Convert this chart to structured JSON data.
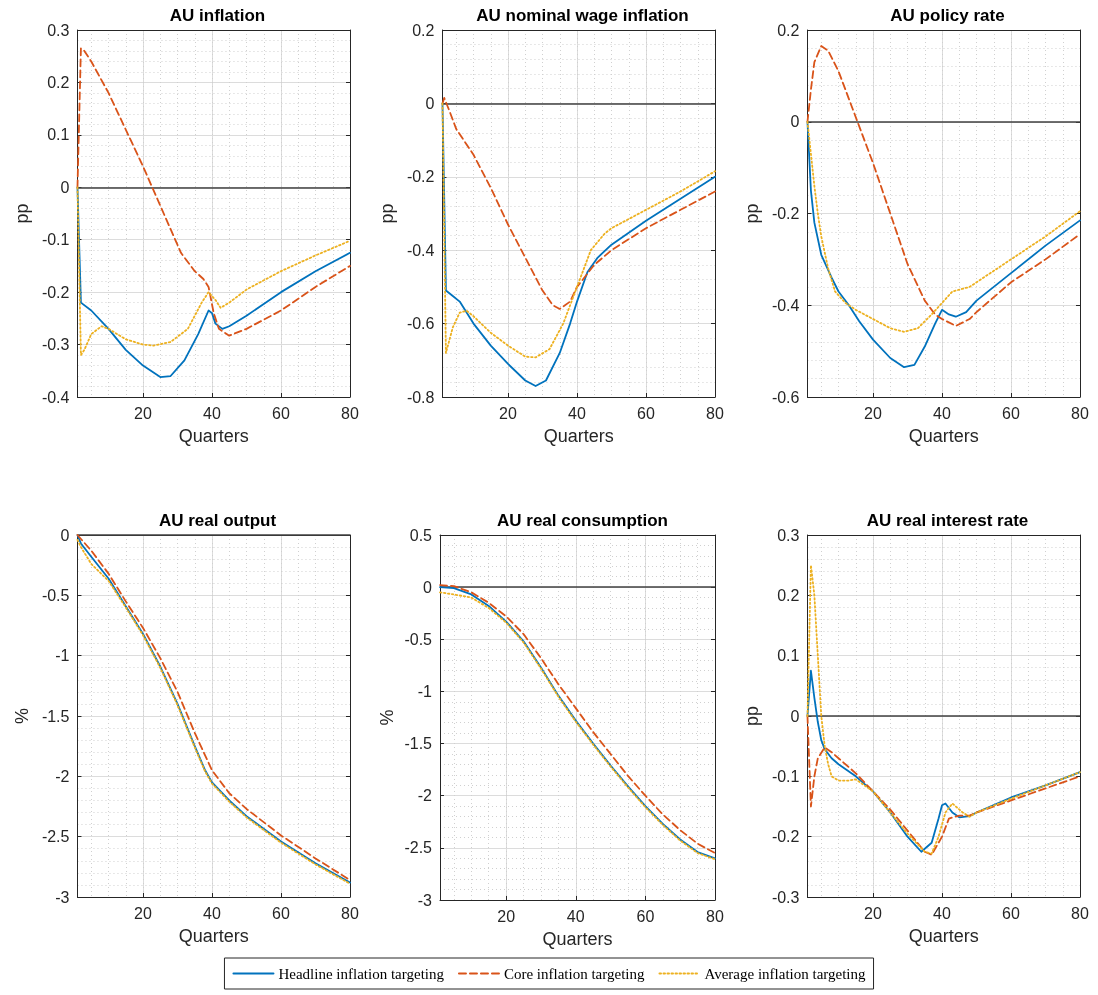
{
  "chart_data": [
    {
      "type": "line",
      "title": "AU inflation",
      "xlabel": "Quarters",
      "ylabel": "pp",
      "xlim": [
        1,
        80
      ],
      "xticks": [
        20,
        40,
        60,
        80
      ],
      "ylim": [
        -0.4,
        0.3
      ],
      "yticks": [
        -0.4,
        -0.3,
        -0.2,
        -0.1,
        0,
        0.1,
        0.2,
        0.3
      ],
      "grid": true,
      "ref_lines": [
        {
          "axis": "y",
          "value": 0,
          "color": "#404040"
        }
      ],
      "series": [
        {
          "color": "#0072bd",
          "line_style": "solid",
          "x": [
            1,
            2,
            5,
            10,
            15,
            20,
            25,
            28,
            32,
            36,
            39,
            40,
            41,
            43,
            45,
            50,
            60,
            70,
            80
          ],
          "values": [
            0,
            -0.22,
            -0.235,
            -0.27,
            -0.31,
            -0.34,
            -0.362,
            -0.36,
            -0.33,
            -0.28,
            -0.235,
            -0.24,
            -0.26,
            -0.27,
            -0.265,
            -0.245,
            -0.2,
            -0.16,
            -0.125
          ]
        },
        {
          "color": "#d95319",
          "line_style": "dashed",
          "x": [
            1,
            2,
            3,
            5,
            10,
            15,
            20,
            25,
            27,
            31,
            35,
            37.5,
            39,
            40.5,
            42,
            45,
            50,
            60,
            70,
            80
          ],
          "values": [
            0,
            0.265,
            0.26,
            0.24,
            0.18,
            0.11,
            0.04,
            -0.035,
            -0.065,
            -0.125,
            -0.16,
            -0.175,
            -0.19,
            -0.24,
            -0.27,
            -0.283,
            -0.27,
            -0.235,
            -0.19,
            -0.15
          ]
        },
        {
          "color": "#edb120",
          "line_style": "dotted",
          "x": [
            1,
            2,
            3,
            5,
            8,
            10,
            15,
            20,
            23,
            28,
            33,
            37,
            39,
            41,
            42.5,
            45,
            50,
            60,
            70,
            80
          ],
          "values": [
            0,
            -0.32,
            -0.31,
            -0.28,
            -0.265,
            -0.27,
            -0.29,
            -0.3,
            -0.302,
            -0.295,
            -0.27,
            -0.22,
            -0.2,
            -0.215,
            -0.23,
            -0.22,
            -0.195,
            -0.16,
            -0.13,
            -0.102
          ]
        }
      ]
    },
    {
      "type": "line",
      "title": "AU nominal wage inflation",
      "xlabel": "Quarters",
      "ylabel": "pp",
      "xlim": [
        1,
        80
      ],
      "xticks": [
        20,
        40,
        60,
        80
      ],
      "ylim": [
        -0.8,
        0.2
      ],
      "yticks": [
        -0.8,
        -0.6,
        -0.4,
        -0.2,
        0,
        0.2
      ],
      "grid": true,
      "ref_lines": [
        {
          "axis": "y",
          "value": 0,
          "color": "#404040"
        }
      ],
      "series": [
        {
          "color": "#0072bd",
          "line_style": "solid",
          "x": [
            1,
            2,
            4,
            6,
            10,
            15,
            20,
            25,
            28,
            31,
            35,
            38,
            40,
            43,
            46,
            50,
            60,
            70,
            80
          ],
          "values": [
            0,
            -0.51,
            -0.525,
            -0.54,
            -0.6,
            -0.66,
            -0.71,
            -0.755,
            -0.77,
            -0.755,
            -0.68,
            -0.6,
            -0.54,
            -0.46,
            -0.42,
            -0.385,
            -0.32,
            -0.26,
            -0.2
          ]
        },
        {
          "color": "#d95319",
          "line_style": "dashed",
          "x": [
            1,
            1.5,
            3,
            5,
            10,
            15,
            20,
            25,
            30,
            33,
            35,
            38,
            40,
            45,
            50,
            60,
            70,
            80
          ],
          "values": [
            0,
            0.015,
            -0.02,
            -0.07,
            -0.14,
            -0.23,
            -0.33,
            -0.42,
            -0.51,
            -0.55,
            -0.56,
            -0.54,
            -0.5,
            -0.44,
            -0.4,
            -0.34,
            -0.29,
            -0.24
          ]
        },
        {
          "color": "#edb120",
          "line_style": "dotted",
          "x": [
            1,
            2,
            4,
            6,
            8,
            10,
            15,
            20,
            25,
            28,
            32,
            36,
            40,
            44,
            48,
            50,
            60,
            70,
            80
          ],
          "values": [
            0,
            -0.68,
            -0.61,
            -0.57,
            -0.565,
            -0.58,
            -0.625,
            -0.66,
            -0.69,
            -0.692,
            -0.67,
            -0.6,
            -0.5,
            -0.4,
            -0.355,
            -0.34,
            -0.29,
            -0.24,
            -0.185
          ]
        }
      ]
    },
    {
      "type": "line",
      "title": "AU policy rate",
      "xlabel": "Quarters",
      "ylabel": "pp",
      "xlim": [
        1,
        80
      ],
      "xticks": [
        20,
        40,
        60,
        80
      ],
      "ylim": [
        -0.6,
        0.2
      ],
      "yticks": [
        -0.6,
        -0.4,
        -0.2,
        0,
        0.2
      ],
      "grid": true,
      "ref_lines": [
        {
          "axis": "y",
          "value": 0,
          "color": "#404040"
        }
      ],
      "series": [
        {
          "color": "#0072bd",
          "line_style": "solid",
          "x": [
            1,
            2,
            3,
            5,
            8,
            10,
            13,
            16,
            20,
            25,
            29,
            32,
            35,
            38,
            40,
            42,
            44,
            47,
            50,
            60,
            70,
            80
          ],
          "values": [
            0,
            -0.15,
            -0.22,
            -0.29,
            -0.34,
            -0.37,
            -0.4,
            -0.435,
            -0.475,
            -0.515,
            -0.535,
            -0.53,
            -0.49,
            -0.44,
            -0.41,
            -0.42,
            -0.425,
            -0.415,
            -0.39,
            -0.33,
            -0.27,
            -0.215
          ]
        },
        {
          "color": "#d95319",
          "line_style": "dashed",
          "x": [
            1,
            2,
            3,
            5,
            7,
            10,
            13,
            15.5,
            20,
            25,
            30,
            35,
            38,
            40,
            44,
            48,
            50,
            60,
            70,
            80
          ],
          "values": [
            0,
            0.07,
            0.13,
            0.165,
            0.155,
            0.11,
            0.05,
            0,
            -0.09,
            -0.2,
            -0.31,
            -0.39,
            -0.42,
            -0.43,
            -0.445,
            -0.43,
            -0.415,
            -0.35,
            -0.3,
            -0.245
          ]
        },
        {
          "color": "#edb120",
          "line_style": "dotted",
          "x": [
            1,
            2,
            3,
            4,
            5,
            7,
            9,
            12,
            15,
            20,
            25,
            29,
            33,
            37,
            40,
            43,
            48,
            50,
            60,
            70,
            80
          ],
          "values": [
            0,
            -0.07,
            -0.14,
            -0.2,
            -0.25,
            -0.32,
            -0.37,
            -0.395,
            -0.41,
            -0.43,
            -0.45,
            -0.458,
            -0.45,
            -0.42,
            -0.395,
            -0.37,
            -0.36,
            -0.35,
            -0.3,
            -0.25,
            -0.195
          ]
        }
      ]
    },
    {
      "type": "line",
      "title": "AU real output",
      "xlabel": "Quarters",
      "ylabel": "%",
      "xlim": [
        1,
        80
      ],
      "xticks": [
        20,
        40,
        60,
        80
      ],
      "ylim": [
        -3,
        0
      ],
      "yticks": [
        -3,
        -2.5,
        -2,
        -1.5,
        -1,
        -0.5,
        0
      ],
      "grid": true,
      "ref_lines": [
        {
          "axis": "y",
          "value": 0,
          "color": "#404040"
        }
      ],
      "series": [
        {
          "color": "#0072bd",
          "line_style": "solid",
          "x": [
            1,
            2,
            5,
            10,
            15,
            20,
            25,
            30,
            35,
            38,
            40,
            45,
            50,
            60,
            70,
            80
          ],
          "values": [
            0,
            -0.07,
            -0.18,
            -0.36,
            -0.59,
            -0.82,
            -1.09,
            -1.4,
            -1.75,
            -1.95,
            -2.05,
            -2.2,
            -2.33,
            -2.54,
            -2.72,
            -2.88
          ]
        },
        {
          "color": "#d95319",
          "line_style": "dashed",
          "x": [
            1,
            5,
            10,
            15,
            20,
            25,
            30,
            35,
            40,
            45,
            50,
            60,
            70,
            80
          ],
          "values": [
            0,
            -0.13,
            -0.32,
            -0.55,
            -0.77,
            -1.02,
            -1.3,
            -1.64,
            -1.95,
            -2.14,
            -2.27,
            -2.49,
            -2.68,
            -2.86
          ]
        },
        {
          "color": "#edb120",
          "line_style": "dotted",
          "x": [
            1,
            2,
            5,
            10,
            15,
            20,
            25,
            30,
            35,
            38,
            40,
            45,
            50,
            60,
            70,
            80
          ],
          "values": [
            -0.04,
            -0.1,
            -0.24,
            -0.38,
            -0.6,
            -0.83,
            -1.1,
            -1.41,
            -1.76,
            -1.96,
            -2.06,
            -2.21,
            -2.34,
            -2.55,
            -2.73,
            -2.89
          ]
        }
      ]
    },
    {
      "type": "line",
      "title": "AU real consumption",
      "xlabel": "Quarters",
      "ylabel": "%",
      "xlim": [
        1,
        80
      ],
      "xticks": [
        20,
        40,
        60,
        80
      ],
      "ylim": [
        -3,
        0.5
      ],
      "yticks": [
        -3,
        -2.5,
        -2,
        -1.5,
        -1,
        -0.5,
        0,
        0.5
      ],
      "grid": true,
      "legend": "bottom",
      "ref_lines": [
        {
          "axis": "y",
          "value": 0,
          "color": "#404040"
        }
      ],
      "series": [
        {
          "name": "Headline inflation targeting",
          "color": "#0072bd",
          "line_style": "solid",
          "x": [
            1,
            5,
            10,
            15,
            20,
            25,
            30,
            35,
            40,
            45,
            50,
            55,
            60,
            65,
            70,
            75,
            80
          ],
          "values": [
            0,
            -0.01,
            -0.07,
            -0.18,
            -0.33,
            -0.52,
            -0.77,
            -1.04,
            -1.28,
            -1.5,
            -1.71,
            -1.91,
            -2.1,
            -2.27,
            -2.42,
            -2.54,
            -2.6
          ]
        },
        {
          "name": "Core inflation targeting",
          "color": "#d95319",
          "line_style": "dashed",
          "x": [
            1,
            5,
            10,
            15,
            20,
            25,
            30,
            35,
            40,
            45,
            50,
            55,
            60,
            65,
            70,
            75,
            80
          ],
          "values": [
            0.02,
            0.01,
            -0.05,
            -0.15,
            -0.28,
            -0.45,
            -0.68,
            -0.93,
            -1.16,
            -1.39,
            -1.6,
            -1.81,
            -2,
            -2.18,
            -2.33,
            -2.46,
            -2.55
          ]
        },
        {
          "name": "Average inflation targeting",
          "color": "#edb120",
          "line_style": "dotted",
          "x": [
            1,
            5,
            10,
            15,
            20,
            25,
            30,
            35,
            40,
            45,
            50,
            55,
            60,
            65,
            70,
            75,
            80
          ],
          "values": [
            -0.05,
            -0.07,
            -0.1,
            -0.2,
            -0.34,
            -0.53,
            -0.78,
            -1.05,
            -1.29,
            -1.51,
            -1.72,
            -1.92,
            -2.11,
            -2.28,
            -2.43,
            -2.55,
            -2.61
          ]
        }
      ]
    },
    {
      "type": "line",
      "title": "AU real interest rate",
      "xlabel": "Quarters",
      "ylabel": "pp",
      "xlim": [
        1,
        80
      ],
      "xticks": [
        20,
        40,
        60,
        80
      ],
      "ylim": [
        -0.3,
        0.3
      ],
      "yticks": [
        -0.3,
        -0.2,
        -0.1,
        0,
        0.1,
        0.2,
        0.3
      ],
      "grid": true,
      "ref_lines": [
        {
          "axis": "y",
          "value": 0,
          "color": "#404040"
        }
      ],
      "series": [
        {
          "color": "#0072bd",
          "line_style": "solid",
          "x": [
            1,
            2,
            3,
            4,
            5,
            6,
            8,
            10,
            15,
            20,
            25,
            30,
            34,
            37,
            39,
            40,
            41,
            43,
            45,
            48,
            50,
            60,
            70,
            80
          ],
          "values": [
            0,
            0.075,
            0.03,
            -0.01,
            -0.04,
            -0.055,
            -0.07,
            -0.08,
            -0.1,
            -0.125,
            -0.16,
            -0.2,
            -0.225,
            -0.21,
            -0.17,
            -0.148,
            -0.145,
            -0.16,
            -0.168,
            -0.166,
            -0.16,
            -0.135,
            -0.115,
            -0.093
          ]
        },
        {
          "color": "#d95319",
          "line_style": "dashed",
          "x": [
            1,
            2,
            3,
            4,
            6,
            8,
            10,
            15,
            20,
            25,
            30,
            35,
            37,
            40,
            42,
            45,
            48,
            50,
            60,
            70,
            80
          ],
          "values": [
            0,
            -0.15,
            -0.1,
            -0.07,
            -0.052,
            -0.06,
            -0.07,
            -0.095,
            -0.125,
            -0.155,
            -0.19,
            -0.225,
            -0.23,
            -0.2,
            -0.17,
            -0.165,
            -0.165,
            -0.16,
            -0.14,
            -0.12,
            -0.1
          ]
        },
        {
          "color": "#edb120",
          "line_style": "dotted",
          "x": [
            1,
            2,
            3,
            4,
            5,
            6,
            7,
            8,
            10,
            13,
            15,
            20,
            25,
            30,
            35,
            37,
            39,
            41,
            43,
            46,
            48,
            50,
            60,
            70,
            80
          ],
          "values": [
            0,
            0.25,
            0.2,
            0.1,
            0,
            -0.05,
            -0.08,
            -0.1,
            -0.107,
            -0.107,
            -0.105,
            -0.125,
            -0.16,
            -0.195,
            -0.225,
            -0.228,
            -0.2,
            -0.16,
            -0.145,
            -0.16,
            -0.167,
            -0.16,
            -0.137,
            -0.115,
            -0.093
          ]
        }
      ]
    }
  ]
}
